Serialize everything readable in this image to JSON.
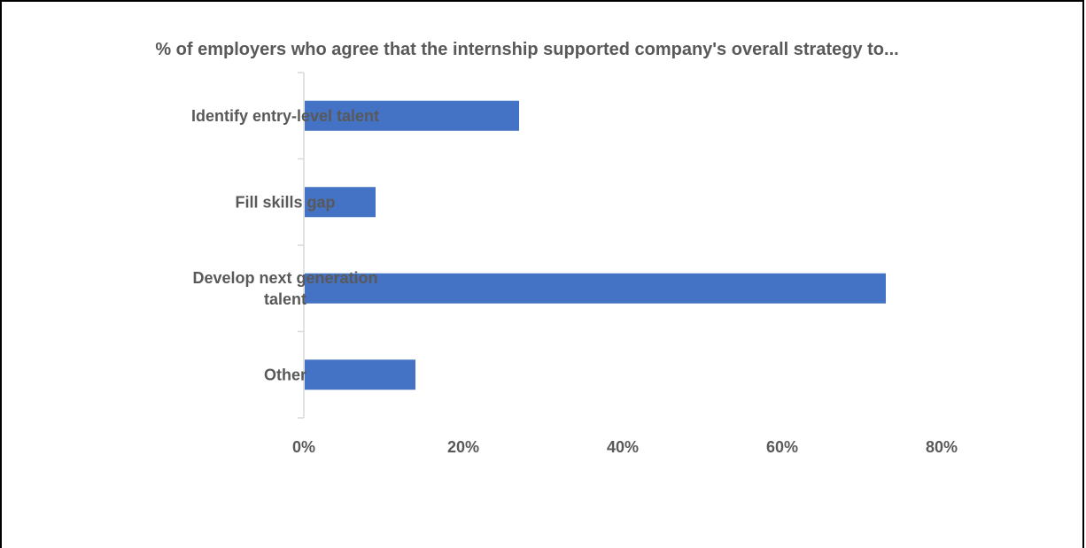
{
  "chart_data": {
    "type": "bar",
    "orientation": "horizontal",
    "title": "% of employers who agree that the internship supported company's overall strategy to...",
    "categories": [
      [
        "Identify entry-level talent"
      ],
      [
        "Fill skills gap"
      ],
      [
        "Develop next generation",
        "talent"
      ],
      [
        "Other"
      ]
    ],
    "values": [
      0.27,
      0.09,
      0.73,
      0.14
    ],
    "xlim": [
      0,
      0.8
    ],
    "x_ticks": [
      {
        "value": 0,
        "label": "0%"
      },
      {
        "value": 0.2,
        "label": "20%"
      },
      {
        "value": 0.4,
        "label": "40%"
      },
      {
        "value": 0.6,
        "label": "60%"
      },
      {
        "value": 0.8,
        "label": "80%"
      }
    ],
    "xlabel": "",
    "ylabel": "",
    "grid": false,
    "legend": "none",
    "bar_color": "#4472C4",
    "axis_color": "#D9D9D9",
    "text_color": "#595959"
  }
}
